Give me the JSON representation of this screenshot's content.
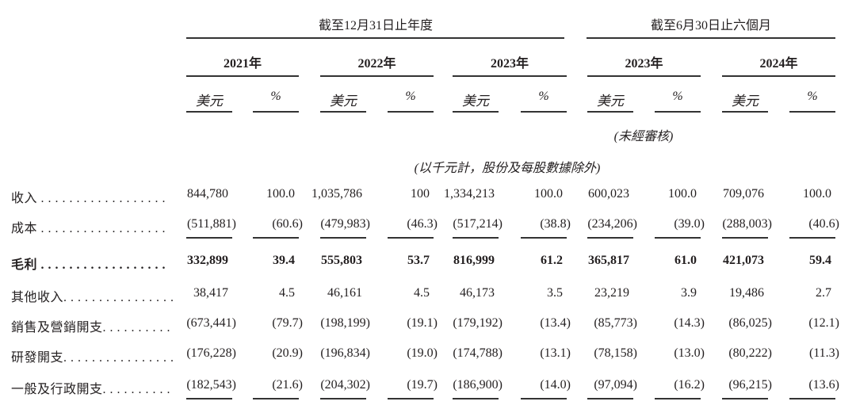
{
  "header": {
    "group_annual": "截至12月31日止年度",
    "group_half": "截至6月30日止六個月",
    "years": [
      "2021年",
      "2022年",
      "2023年",
      "2023年",
      "2024年"
    ],
    "currency_label": "美元",
    "percent_label": "%",
    "unaudited_note": "(未經審核)",
    "unit_note": "(以千元計，股份及每股數據除外)"
  },
  "rows": [
    {
      "label": "收入 . . . . . . . . . . . . . . . . . .",
      "bold": false,
      "underline": false,
      "values": [
        "844,780",
        "100.0",
        "1,035,786",
        "100",
        "1,334,213",
        "100.0",
        "600,023",
        "100.0",
        "709,076",
        "100.0"
      ]
    },
    {
      "label": "成本 . . . . . . . . . . . . . . . . . .",
      "bold": false,
      "underline": true,
      "values": [
        "(511,881)",
        "(60.6)",
        "(479,983)",
        "(46.3)",
        "(517,214)",
        "(38.8)",
        "(234,206)",
        "(39.0)",
        "(288,003)",
        "(40.6)"
      ]
    },
    {
      "label": "毛利 . . . . . . . . . . . . . . . . . .",
      "bold": true,
      "underline": false,
      "values": [
        "332,899",
        "39.4",
        "555,803",
        "53.7",
        "816,999",
        "61.2",
        "365,817",
        "61.0",
        "421,073",
        "59.4"
      ]
    },
    {
      "label": "其他收入. . . . . . . . . . . . . . . .",
      "bold": false,
      "underline": false,
      "values": [
        "38,417",
        "4.5",
        "46,161",
        "4.5",
        "46,173",
        "3.5",
        "23,219",
        "3.9",
        "19,486",
        "2.7"
      ]
    },
    {
      "label": "銷售及營銷開支. . . . . . . . . .",
      "bold": false,
      "underline": false,
      "values": [
        "(673,441)",
        "(79.7)",
        "(198,199)",
        "(19.1)",
        "(179,192)",
        "(13.4)",
        "(85,773)",
        "(14.3)",
        "(86,025)",
        "(12.1)"
      ]
    },
    {
      "label": "研發開支. . . . . . . . . . . . . . . .",
      "bold": false,
      "underline": false,
      "values": [
        "(176,228)",
        "(20.9)",
        "(196,834)",
        "(19.0)",
        "(174,788)",
        "(13.1)",
        "(78,158)",
        "(13.0)",
        "(80,222)",
        "(11.3)"
      ]
    },
    {
      "label": "一般及行政開支. . . . . . . . . .",
      "bold": false,
      "underline": true,
      "values": [
        "(182,543)",
        "(21.6)",
        "(204,302)",
        "(19.7)",
        "(186,900)",
        "(14.0)",
        "(97,094)",
        "(16.2)",
        "(96,215)",
        "(13.6)"
      ]
    }
  ]
}
